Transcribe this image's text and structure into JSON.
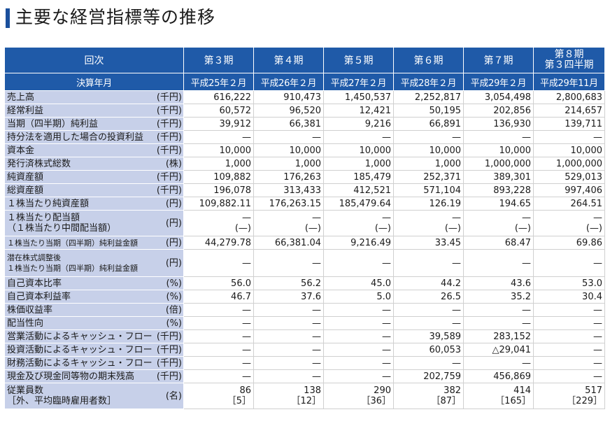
{
  "page": {
    "title": "主要な経営指標等の推移"
  },
  "header": {
    "row1_label": "回次",
    "row2_label": "決算年月",
    "periods": [
      {
        "name": "第３期",
        "date": "平成25年２月"
      },
      {
        "name": "第４期",
        "date": "平成26年２月"
      },
      {
        "name": "第５期",
        "date": "平成27年２月"
      },
      {
        "name": "第６期",
        "date": "平成28年２月"
      },
      {
        "name": "第７期",
        "date": "平成29年２月"
      },
      {
        "name": "第８期",
        "name2": "第３四半期",
        "date": "平成29年11月"
      }
    ]
  },
  "rows": [
    {
      "label": "売上高",
      "unit": "(千円)",
      "values": [
        "616,222",
        "910,473",
        "1,450,537",
        "2,252,817",
        "3,054,498",
        "2,800,683"
      ]
    },
    {
      "label": "経常利益",
      "unit": "(千円)",
      "values": [
        "60,572",
        "96,520",
        "12,421",
        "50,195",
        "202,856",
        "214,657"
      ]
    },
    {
      "label": "当期（四半期）純利益",
      "unit": "(千円)",
      "values": [
        "39,912",
        "66,381",
        "9,216",
        "66,891",
        "136,930",
        "139,711"
      ]
    },
    {
      "label": "持分法を適用した場合の投資利益",
      "unit": "(千円)",
      "values": [
        "—",
        "—",
        "—",
        "—",
        "—",
        "—"
      ]
    },
    {
      "label": "資本金",
      "unit": "(千円)",
      "values": [
        "10,000",
        "10,000",
        "10,000",
        "10,000",
        "10,000",
        "10,000"
      ]
    },
    {
      "label": "発行済株式総数",
      "unit": "(株)",
      "values": [
        "1,000",
        "1,000",
        "1,000",
        "1,000",
        "1,000,000",
        "1,000,000"
      ]
    },
    {
      "label": "純資産額",
      "unit": "(千円)",
      "values": [
        "109,882",
        "176,263",
        "185,479",
        "252,371",
        "389,301",
        "529,013"
      ]
    },
    {
      "label": "総資産額",
      "unit": "(千円)",
      "values": [
        "196,078",
        "313,433",
        "412,521",
        "571,104",
        "893,228",
        "997,406"
      ]
    },
    {
      "label": "１株当たり純資産額",
      "unit": "(円)",
      "values": [
        "109,882.11",
        "176,263.15",
        "185,479.64",
        "126.19",
        "194.65",
        "264.51"
      ]
    }
  ],
  "dividend_row": {
    "label1": "１株当たり配当額",
    "label2": "（１株当たり中間配当額）",
    "unit": "(円)",
    "values": [
      "—",
      "—",
      "—",
      "—",
      "—",
      "—"
    ],
    "sub_values": [
      "(—)",
      "(—)",
      "(—)",
      "(—)",
      "(—)",
      "(—)"
    ]
  },
  "eps_row": {
    "label": "１株当たり当期（四半期）純利益金額",
    "unit": "(円)",
    "values": [
      "44,279.78",
      "66,381.04",
      "9,216.49",
      "33.45",
      "68.47",
      "69.86"
    ]
  },
  "diluted_row": {
    "label1": "潜在株式調整後",
    "label2": "１株当たり当期（四半期）純利益金額",
    "unit": "(円)",
    "values": [
      "—",
      "—",
      "—",
      "—",
      "—",
      "—"
    ]
  },
  "rows2": [
    {
      "label": "自己資本比率",
      "unit": "(%)",
      "values": [
        "56.0",
        "56.2",
        "45.0",
        "44.2",
        "43.6",
        "53.0"
      ]
    },
    {
      "label": "自己資本利益率",
      "unit": "(%)",
      "values": [
        "46.7",
        "37.6",
        "5.0",
        "26.5",
        "35.2",
        "30.4"
      ]
    },
    {
      "label": "株価収益率",
      "unit": "(倍)",
      "values": [
        "—",
        "—",
        "—",
        "—",
        "—",
        "—"
      ]
    },
    {
      "label": "配当性向",
      "unit": "(%)",
      "values": [
        "—",
        "—",
        "—",
        "—",
        "—",
        "—"
      ]
    },
    {
      "label": "営業活動によるキャッシュ・フロー",
      "unit": "(千円)",
      "values": [
        "—",
        "—",
        "—",
        "39,589",
        "283,152",
        "—"
      ]
    },
    {
      "label": "投資活動によるキャッシュ・フロー",
      "unit": "(千円)",
      "values": [
        "—",
        "—",
        "—",
        "60,053",
        "△29,041",
        "—"
      ]
    },
    {
      "label": "財務活動によるキャッシュ・フロー",
      "unit": "(千円)",
      "values": [
        "—",
        "—",
        "—",
        "—",
        "—",
        "—"
      ]
    },
    {
      "label": "現金及び現金同等物の期末残高",
      "unit": "(千円)",
      "values": [
        "—",
        "—",
        "—",
        "202,759",
        "456,869",
        "—"
      ]
    }
  ],
  "employees_row": {
    "label1": "従業員数",
    "label2": "［外、平均臨時雇用者数］",
    "unit": "(名)",
    "values": [
      "86",
      "138",
      "290",
      "382",
      "414",
      "517"
    ],
    "sub_values": [
      "［5］",
      "［12］",
      "［36］",
      "［87］",
      "［165］",
      "［229］"
    ]
  },
  "colors": {
    "header_bg": "#1f5aa8",
    "label_bg": "#c7d0e9",
    "title_bar": "#1a4f9c"
  }
}
